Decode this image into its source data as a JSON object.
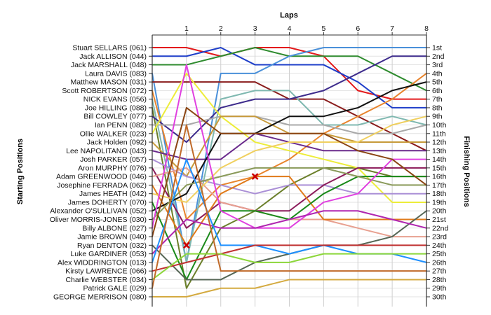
{
  "chart_data": {
    "type": "line",
    "title": "Laps",
    "xlabel": "Laps",
    "ylabel_left": "Starting Positions",
    "ylabel_right": "Finishing Positions",
    "x_ticks": [
      "1",
      "2",
      "3",
      "4",
      "5",
      "6",
      "7",
      "8"
    ],
    "xlim": [
      0,
      8
    ],
    "ylim": [
      1,
      30
    ],
    "y_inverted": true,
    "grid": true,
    "drivers": [
      "Stuart SELLARS (061)",
      "Jack ALLISON (044)",
      "Jack MARSHALL (048)",
      "Laura DAVIS (083)",
      "Matthew MASON (031)",
      "Scott ROBERTSON (072)",
      "NICK EVANS (056)",
      "Joe HILLING (088)",
      "Bill COWLEY (077)",
      "Ian PENN (082)",
      "Ollie WALKER (023)",
      "Jack Holden (092)",
      "Lee NAPOLITANO (043)",
      "Josh PARKER (057)",
      "Aron MURPHY (076)",
      "Adam GREENWOOD (046)",
      "Josephine FERRADA (062)",
      "James HEATH (042)",
      "James DOHERTY (070)",
      "Alexander O'SULLIVAN (052)",
      "Oliver MORRIS-JONES (030)",
      "Billy ALBONE (027)",
      "Jamie BROWN (040)",
      "Ryan DENTON (032)",
      "Luke GARDINER (053)",
      "Alex WIDDRINGTON (013)",
      "Kirsty LAWRENCE (066)",
      "Charlie WEBSTER (034)",
      "Patrick GALE (029)",
      "GEORGE MERRISON (080)"
    ],
    "finishing_positions": [
      "1st",
      "2nd",
      "3rd",
      "4th",
      "5th",
      "6th",
      "7th",
      "8th",
      "9th",
      "10th",
      "11th",
      "12th",
      "13th",
      "14th",
      "15th",
      "16th",
      "17th",
      "18th",
      "19th",
      "20th",
      "21st",
      "22nd",
      "23rd",
      "24th",
      "25th",
      "26th",
      "27th",
      "28th",
      "29th",
      "30th"
    ],
    "series": [
      {
        "color": "#e31a1c",
        "values": [
          1,
          1,
          2,
          1,
          1,
          2,
          6,
          7,
          7
        ]
      },
      {
        "color": "#1f3fc9",
        "values": [
          2,
          2,
          1,
          3,
          3,
          3,
          5,
          8,
          8
        ]
      },
      {
        "color": "#2e8b2e",
        "values": [
          3,
          3,
          2,
          1,
          2,
          2,
          2,
          4,
          6
        ]
      },
      {
        "color": "#4a90d9",
        "values": [
          4,
          26,
          4,
          4,
          2,
          1,
          1,
          1,
          1
        ]
      },
      {
        "color": "#8a1c1c",
        "values": [
          5,
          5,
          5,
          5,
          7,
          7,
          9,
          11,
          13
        ]
      },
      {
        "color": "#e8842c",
        "values": [
          6,
          21,
          17,
          16,
          14,
          11,
          9,
          7,
          4
        ]
      },
      {
        "color": "#7fb8b0",
        "values": [
          7,
          26,
          7,
          6,
          6,
          10,
          10,
          9,
          10
        ]
      },
      {
        "color": "#6b7f2a",
        "values": [
          8,
          29,
          22,
          20,
          17,
          15,
          15,
          16,
          16
        ]
      },
      {
        "color": "#3d2b8c",
        "values": [
          9,
          12,
          8,
          7,
          7,
          6,
          4,
          2,
          2
        ]
      },
      {
        "color": "#a9a9a9",
        "values": [
          10,
          10,
          9,
          9,
          10,
          10,
          11,
          11,
          10
        ]
      },
      {
        "color": "#eded3a",
        "values": [
          11,
          4,
          9,
          12,
          13,
          14,
          15,
          19,
          19
        ]
      },
      {
        "color": "#c79a3a",
        "values": [
          12,
          16,
          9,
          9,
          11,
          11,
          12,
          12,
          12
        ]
      },
      {
        "color": "#6a2a8c",
        "values": [
          13,
          14,
          14,
          11,
          12,
          13,
          13,
          13,
          13
        ]
      },
      {
        "color": "#aa8fd6",
        "values": [
          14,
          16,
          17,
          18,
          17,
          17,
          18,
          18,
          18
        ]
      },
      {
        "color": "#8b1a5a",
        "values": [
          15,
          22,
          19,
          20,
          20,
          17,
          15,
          15,
          15
        ]
      },
      {
        "color": "#e8a090",
        "values": [
          16,
          15,
          19,
          20,
          21,
          21,
          22,
          23,
          23
        ]
      },
      {
        "color": "#e07a1a",
        "values": [
          17,
          24,
          18,
          16,
          16,
          21,
          21,
          21,
          21
        ]
      },
      {
        "color": "#f0d060",
        "values": [
          18,
          19,
          15,
          13,
          12,
          12,
          12,
          10,
          9
        ]
      },
      {
        "color": "#1a8a1a",
        "values": [
          19,
          28,
          20,
          20,
          21,
          18,
          16,
          16,
          16
        ]
      },
      {
        "color": "#111111",
        "values": [
          20,
          18,
          11,
          11,
          9,
          9,
          8,
          6,
          5
        ]
      },
      {
        "color": "#8a9a5a",
        "values": [
          21,
          17,
          16,
          15,
          15,
          15,
          16,
          17,
          17
        ]
      },
      {
        "color": "#e040e0",
        "values": [
          22,
          3,
          20,
          22,
          22,
          19,
          18,
          14,
          14
        ]
      },
      {
        "color": "#8b4513",
        "values": [
          23,
          8,
          11,
          11,
          11,
          11,
          13,
          14,
          17
        ]
      },
      {
        "color": "#556655",
        "values": [
          24,
          28,
          28,
          26,
          25,
          24,
          24,
          23,
          20
        ]
      },
      {
        "color": "#b026b0",
        "values": [
          25,
          21,
          22,
          22,
          21,
          20,
          20,
          21,
          22
        ]
      },
      {
        "color": "#1e90ff",
        "values": [
          26,
          14,
          24,
          24,
          25,
          24,
          25,
          25,
          26
        ]
      },
      {
        "color": "#c03030",
        "values": [
          27,
          26,
          25,
          24,
          24,
          24,
          24,
          24,
          24
        ]
      },
      {
        "color": "#8cd63a",
        "values": [
          28,
          25,
          25,
          26,
          26,
          25,
          25,
          25,
          25
        ]
      },
      {
        "color": "#c06a2a",
        "values": [
          29,
          10,
          27,
          27,
          27,
          27,
          27,
          27,
          27
        ]
      },
      {
        "color": "#d4aa40",
        "values": [
          30,
          30,
          29,
          29,
          28,
          28,
          28,
          28,
          28
        ]
      }
    ],
    "markers": [
      {
        "x": 3,
        "y": 16,
        "symbol": "x",
        "color": "#cc0000"
      },
      {
        "x": 1,
        "y": 24,
        "symbol": "x",
        "color": "#cc0000"
      }
    ]
  }
}
